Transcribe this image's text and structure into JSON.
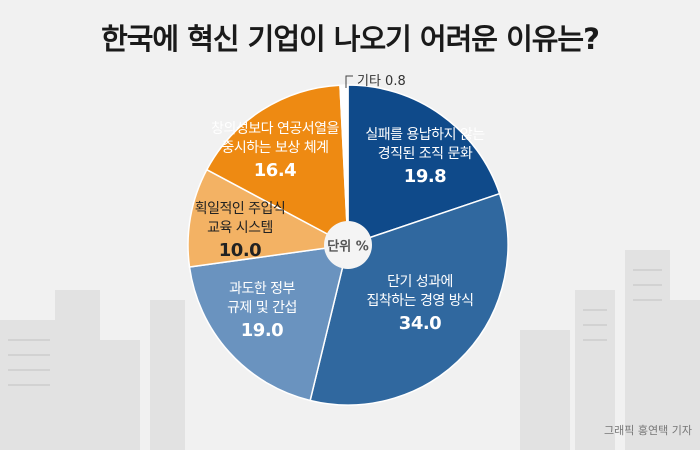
{
  "title": "한국에 혁신 기업이 나오기 어려운 이유는?",
  "unit_label": "단위 %",
  "credit": "그래픽 홍연택 기자",
  "chart_data": {
    "type": "pie",
    "title": "한국에 혁신 기업이 나오기 어려운 이유는?",
    "unit": "%",
    "start": "top, clockwise",
    "slices": [
      {
        "label": "실패를 용납하지 않는 경직된 조직 문화",
        "line1": "실패를 용납하지 않는",
        "line2": "경직된 조직 문화",
        "value": 19.8,
        "display": "19.8",
        "color": "#0f4a8a"
      },
      {
        "label": "단기 성과에 집착하는 경영 방식",
        "line1": "단기 성과에",
        "line2": "집착하는 경영 방식",
        "value": 34.0,
        "display": "34.0",
        "color": "#30689f"
      },
      {
        "label": "과도한 정부 규제 및 간섭",
        "line1": "과도한 정부",
        "line2": "규제 및 간섭",
        "value": 19.0,
        "display": "19.0",
        "color": "#6a93bf"
      },
      {
        "label": "획일적인 주입식 교육 시스템",
        "line1": "획일적인 주입식",
        "line2": "교육 시스템",
        "value": 10.0,
        "display": "10.0",
        "color": "#f3b264"
      },
      {
        "label": "창의성보다 연공서열을 중시하는 보상 체계",
        "line1": "창의성보다 연공서열을",
        "line2": "중시하는 보상 체계",
        "value": 16.4,
        "display": "16.4",
        "color": "#ee8a12"
      },
      {
        "label": "기타",
        "value": 0.8,
        "display": "기타 0.8",
        "color": "#ffffff"
      }
    ]
  }
}
